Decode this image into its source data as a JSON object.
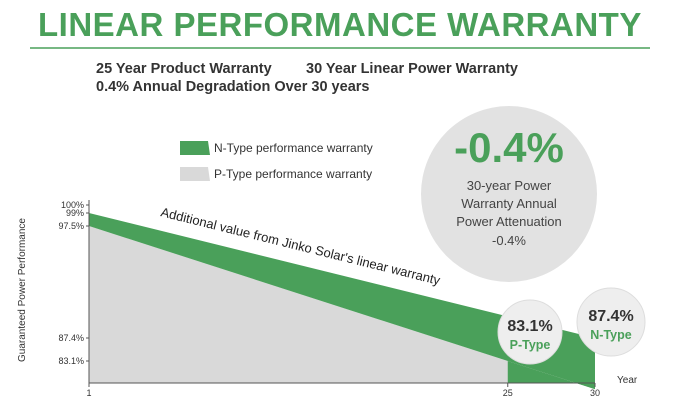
{
  "header": {
    "title": "LINEAR PERFORMANCE WARRANTY",
    "line1_a": "25 Year Product Warranty",
    "line1_b": "30 Year Linear Power Warranty",
    "line2": "0.4% Annual Degradation Over 30 years"
  },
  "legend": {
    "n_type": "N-Type performance warranty",
    "p_type": "P-Type performance warranty"
  },
  "colors": {
    "accent": "#4aa05a",
    "n_type": "#4aa05a",
    "p_type": "#d9d9d9",
    "text": "#333333"
  },
  "callout": {
    "value": "-0.4%",
    "line1": "30-year Power",
    "line2": "Warranty Annual",
    "line3": "Power Attenuation",
    "line4": "-0.4%"
  },
  "chart_data": {
    "type": "area",
    "title": "",
    "xlabel": "Year",
    "ylabel": "Guaranteed Power Performance",
    "x_ticks": [
      "1",
      "25",
      "30"
    ],
    "y_ticks": [
      "100%",
      "99%",
      "97.5%",
      "87.4%",
      "83.1%"
    ],
    "series": [
      {
        "name": "N-Type performance warranty",
        "x": [
          1,
          30
        ],
        "values": [
          99,
          87.4
        ]
      },
      {
        "name": "P-Type performance warranty",
        "x": [
          1,
          25
        ],
        "values": [
          97.5,
          83.1
        ]
      }
    ],
    "annotation": "Additional value from Jinko Solar's linear warranty",
    "end_labels": [
      {
        "value": "83.1%",
        "label": "P-Type"
      },
      {
        "value": "87.4%",
        "label": "N-Type"
      }
    ]
  }
}
